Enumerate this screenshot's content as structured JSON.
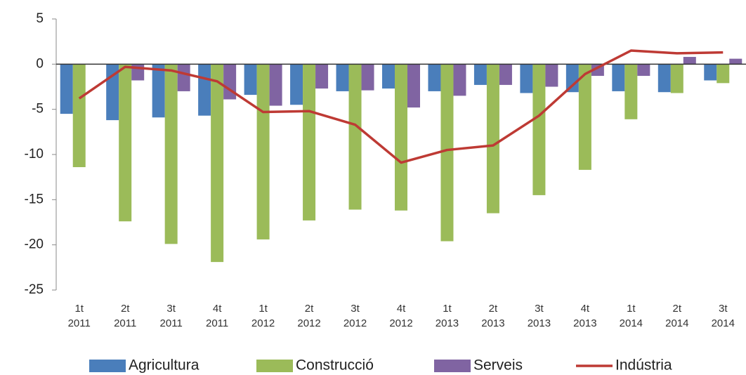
{
  "chart_data": {
    "type": "bar",
    "categories": [
      [
        "1t",
        "2011"
      ],
      [
        "2t",
        "2011"
      ],
      [
        "3t",
        "2011"
      ],
      [
        "4t",
        "2011"
      ],
      [
        "1t",
        "2012"
      ],
      [
        "2t",
        "2012"
      ],
      [
        "3t",
        "2012"
      ],
      [
        "4t",
        "2012"
      ],
      [
        "1t",
        "2013"
      ],
      [
        "2t",
        "2013"
      ],
      [
        "3t",
        "2013"
      ],
      [
        "4t",
        "2013"
      ],
      [
        "1t",
        "2014"
      ],
      [
        "2t",
        "2014"
      ],
      [
        "3t",
        "2014"
      ]
    ],
    "series": [
      {
        "name": "Agricultura",
        "color": "#4a7ebb",
        "type": "bar",
        "values": [
          -5.5,
          -6.2,
          -5.9,
          -5.7,
          -3.4,
          -4.5,
          -3.0,
          -2.7,
          -3.0,
          -2.3,
          -3.2,
          -3.1,
          -3.0,
          -3.1,
          -1.8
        ]
      },
      {
        "name": "Construcció",
        "color": "#9bbb59",
        "type": "bar",
        "values": [
          -11.4,
          -17.4,
          -19.9,
          -21.9,
          -19.4,
          -17.3,
          -16.1,
          -16.2,
          -19.6,
          -16.5,
          -14.5,
          -11.7,
          -6.1,
          -3.2,
          -2.1
        ]
      },
      {
        "name": "Serveis",
        "color": "#8064a2",
        "type": "bar",
        "values": [
          0,
          -1.8,
          -3.0,
          -3.9,
          -4.6,
          -2.7,
          -2.9,
          -4.8,
          -3.5,
          -2.3,
          -2.5,
          -1.3,
          -1.3,
          0.8,
          0.6
        ]
      },
      {
        "name": "Indústria",
        "color": "#be3a34",
        "type": "line",
        "values": [
          -3.8,
          -0.3,
          -0.7,
          -1.9,
          -5.3,
          -5.2,
          -6.7,
          -10.9,
          -9.5,
          -9.0,
          -5.7,
          -1.1,
          1.5,
          1.2,
          1.3
        ]
      }
    ],
    "ylim": [
      -25,
      5
    ],
    "yticks": [
      5,
      0,
      -5,
      -10,
      -15,
      -20,
      -25
    ],
    "grid": false,
    "legend": "bottom"
  }
}
